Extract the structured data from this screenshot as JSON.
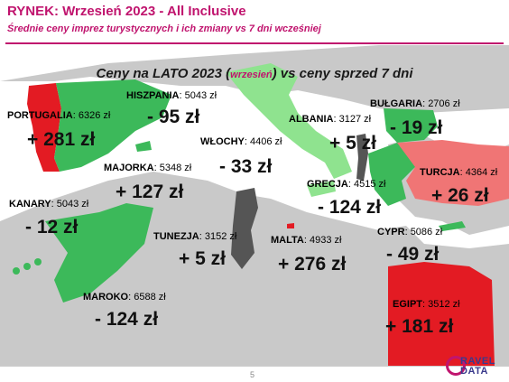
{
  "title": "RYNEK: Wrzesień 2023 - All Inclusive",
  "subtitle": "Średnie ceny imprez turystycznych i ich zmiany vs 7 dni wcześniej",
  "map_header": {
    "main": "Ceny na LATO 2023 (",
    "paren": "wrzesień",
    "tail": ") vs ceny sprzed 7 dni"
  },
  "colors": {
    "brand": "#c0146e",
    "increase_high": "#e31b23",
    "increase_mid": "#f07575",
    "decrease": "#3cb95a",
    "decrease_light": "#8fe38f",
    "neutral": "#555555",
    "land": "#c9c9c9",
    "sea": "#ffffff"
  },
  "countries": [
    {
      "name": "PORTUGALIA",
      "price": "6326 zł",
      "change": "+ 281 zł"
    },
    {
      "name": "HISZPANIA",
      "price": "5043 zł",
      "change": "- 95 zł"
    },
    {
      "name": "WŁOCHY",
      "price": "4406 zł",
      "change": "- 33 zł"
    },
    {
      "name": "ALBANIA",
      "price": "3127 zł",
      "change": "+ 5 zł"
    },
    {
      "name": "BUŁGARIA",
      "price": "2706 zł",
      "change": "- 19 zł"
    },
    {
      "name": "MAJORKA",
      "price": "5348 zł",
      "change": "+ 127 zł"
    },
    {
      "name": "TURCJA",
      "price": "4364 zł",
      "change": "+ 26 zł"
    },
    {
      "name": "KANARY",
      "price": "5043 zł",
      "change": "- 12 zł"
    },
    {
      "name": "GRECJA",
      "price": "4515 zł",
      "change": "- 124 zł"
    },
    {
      "name": "TUNEZJA",
      "price": "3152 zł",
      "change": "+ 5 zł"
    },
    {
      "name": "MALTA",
      "price": "4933 zł",
      "change": "+ 276 zł"
    },
    {
      "name": "CYPR",
      "price": "5086 zł",
      "change": "- 49 zł"
    },
    {
      "name": "MAROKO",
      "price": "6588 zł",
      "change": "- 124 zł"
    },
    {
      "name": "EGIPT",
      "price": "3512 zł",
      "change": "+ 181 zł"
    }
  ],
  "page_number": "5",
  "logo": {
    "line1": "RAVEL",
    "line2": "DATA"
  }
}
